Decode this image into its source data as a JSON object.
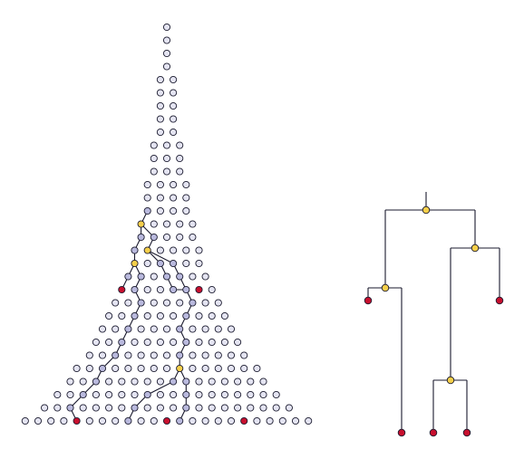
{
  "colors": {
    "background": "#ffffff",
    "grid_node_fill": "#d9d9ee",
    "grid_node_stroke": "#1a1a2e",
    "ancestor_fill": "#f5cf4a",
    "leaf_fill": "#c8102e",
    "edge": "#1a1a2e"
  },
  "lattice": {
    "generations": 31,
    "nodes_per_generation": [
      1,
      1,
      1,
      1,
      2,
      2,
      2,
      2,
      2,
      3,
      3,
      3,
      4,
      4,
      4,
      5,
      5,
      6,
      6,
      7,
      8,
      9,
      10,
      11,
      12,
      13,
      15,
      16,
      18,
      20,
      23
    ]
  },
  "genealogy": {
    "description_free": true,
    "lineage_edges": [
      {
        "from": [
          15,
          0
        ],
        "to": [
          17,
          1
        ]
      },
      {
        "from": [
          15,
          0
        ],
        "to": [
          18,
          0
        ]
      },
      {
        "from": [
          18,
          0
        ],
        "to": [
          20,
          0
        ]
      },
      {
        "from": [
          18,
          0
        ],
        "to": [
          20,
          1
        ]
      },
      {
        "from": [
          17,
          1
        ],
        "to": [
          20,
          5
        ]
      },
      {
        "from": [
          17,
          1
        ],
        "to": [
          23,
          5
        ]
      },
      {
        "from": [
          23,
          5
        ],
        "to": [
          26,
          5
        ]
      },
      {
        "from": [
          26,
          5
        ],
        "to": [
          30,
          4
        ]
      },
      {
        "from": [
          26,
          5
        ],
        "to": [
          30,
          11
        ]
      },
      {
        "from": [
          26,
          5
        ],
        "to": [
          27,
          11
        ]
      },
      {
        "from": [
          27,
          11
        ],
        "to": [
          30,
          16
        ]
      },
      {
        "from": [
          20,
          1
        ],
        "to": [
          30,
          3
        ]
      }
    ]
  },
  "tree": {
    "ancestors": [
      "root",
      "a1",
      "a2",
      "a3"
    ],
    "leaves": [
      "l1",
      "l2",
      "l3",
      "l4",
      "l5",
      "l6"
    ]
  }
}
